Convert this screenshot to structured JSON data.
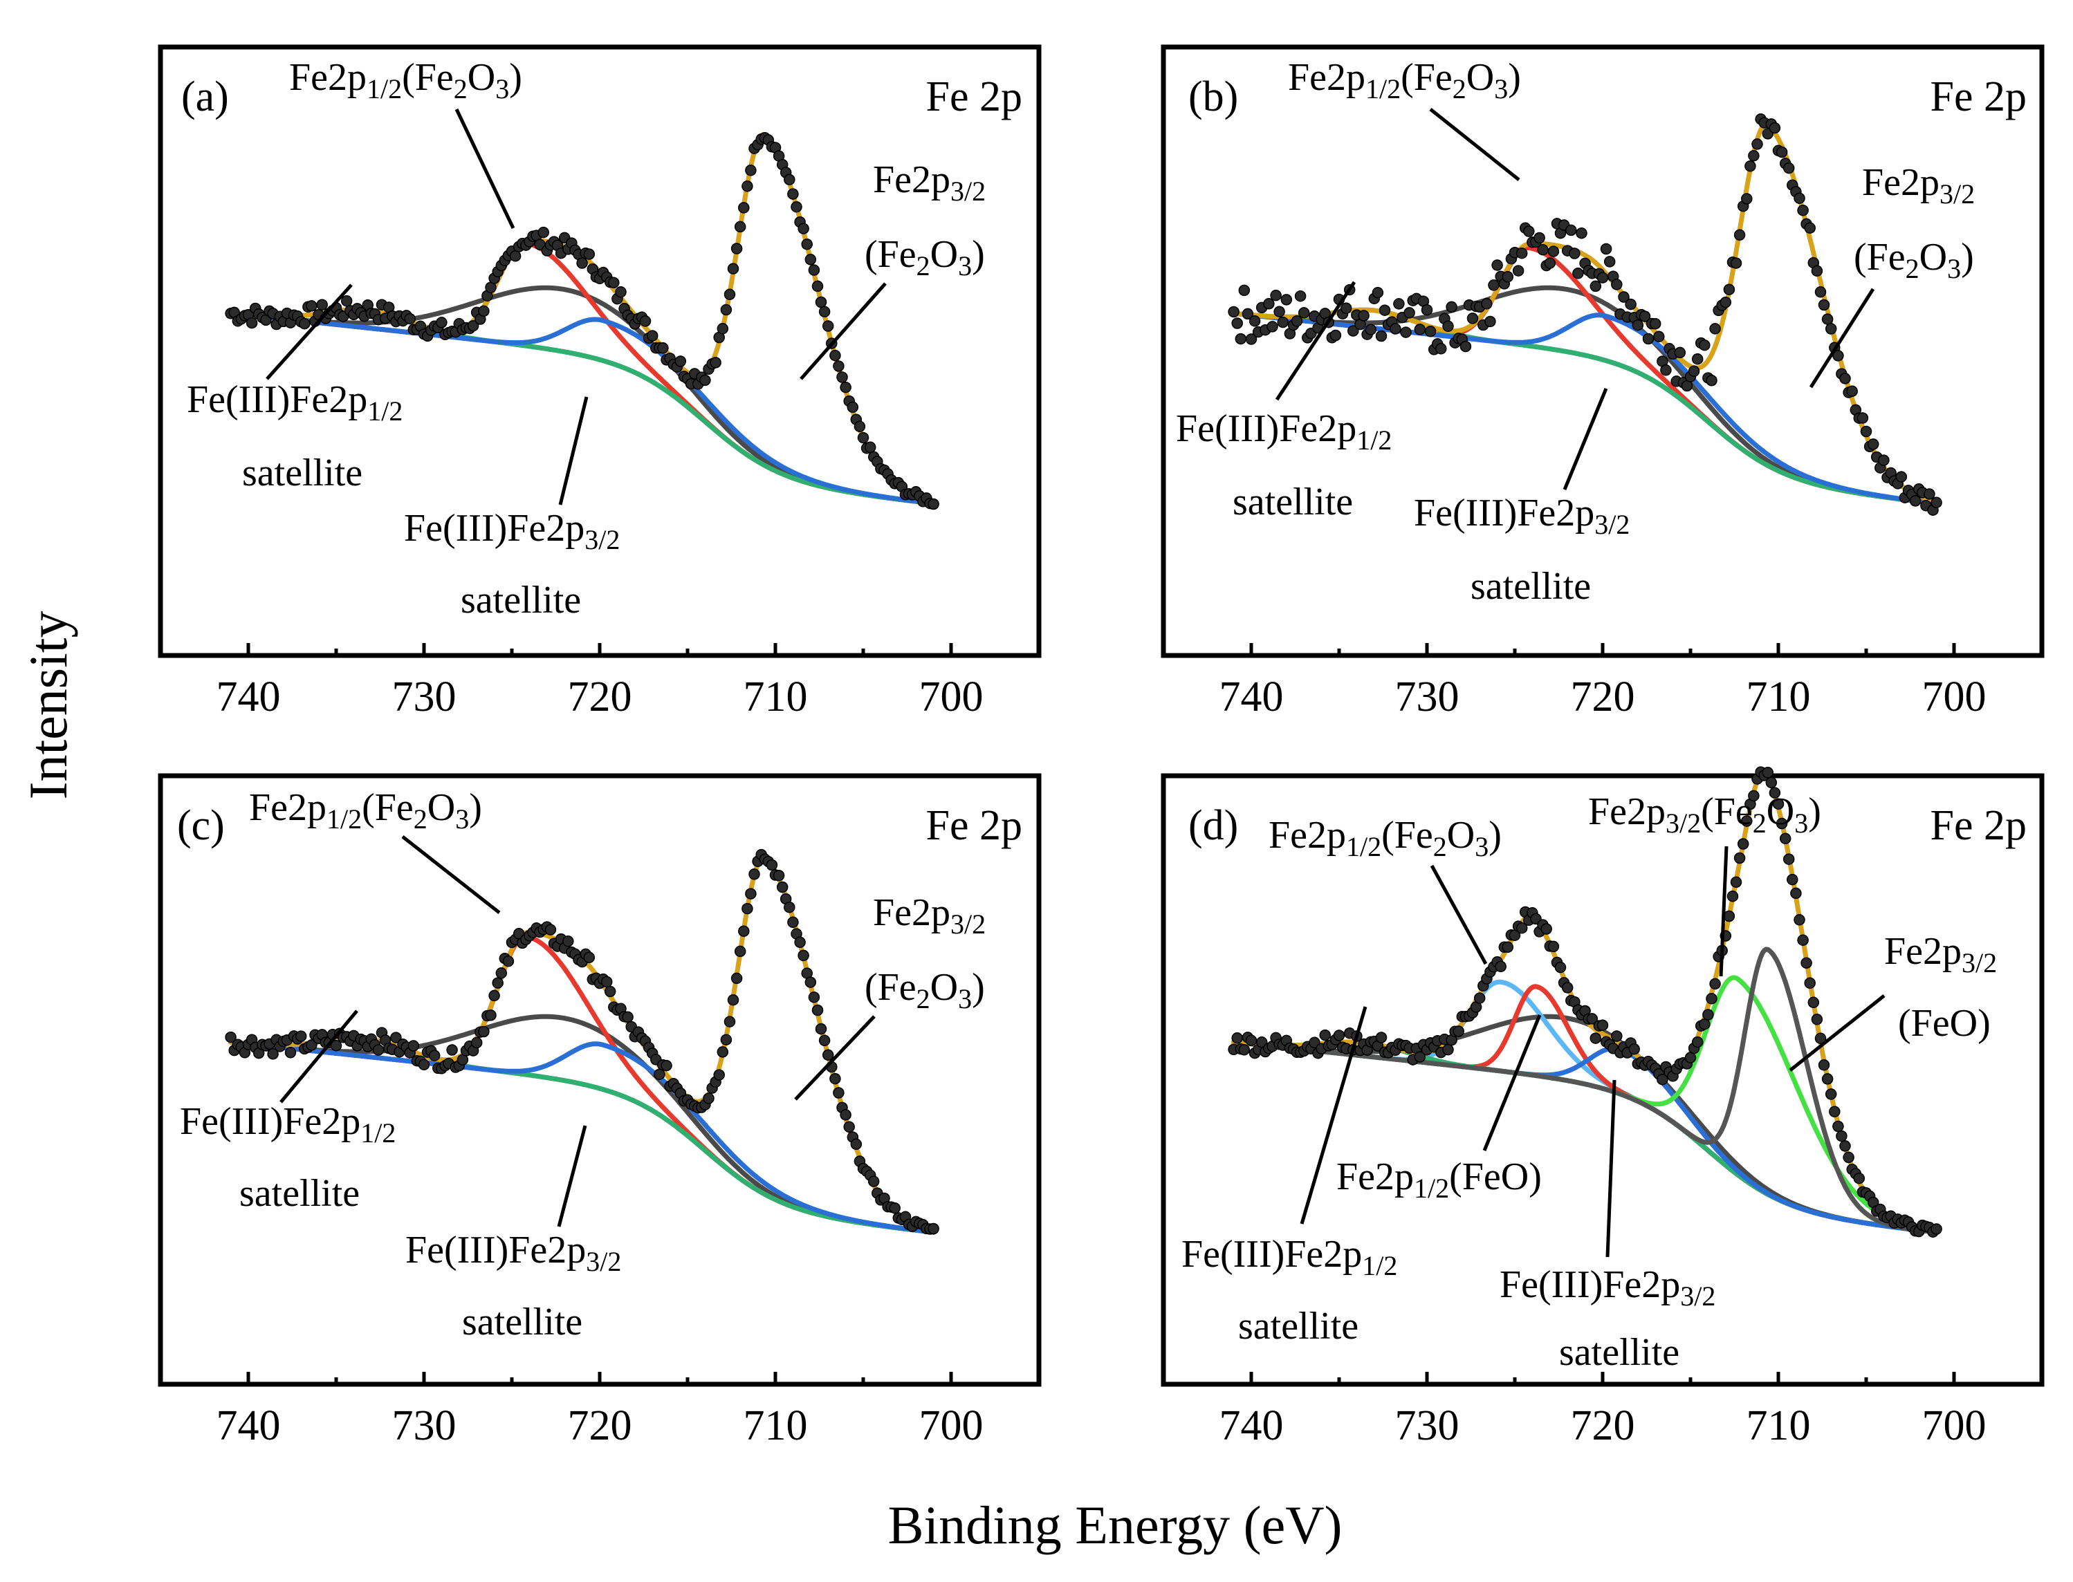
{
  "figure": {
    "xlabel": "Binding Energy (eV)",
    "ylabel": "Intensity"
  },
  "colors": {
    "data_points": "#2b2b2b",
    "envelope": "#D9A21B",
    "fe2o3_2p12": "#E8392E",
    "fe3_sat_2p12": "#30B070",
    "fe3_sat_2p32": "#2A6FD6",
    "background": "#4A4A4A",
    "baseline": "#B57EDC",
    "feo_2p12": "#5BB8F5",
    "fe2o3_2p32": "#44E044",
    "feo_2p32": "#555555"
  },
  "chart_data": [
    {
      "panel": "a",
      "type": "line",
      "title": "Fe 2p",
      "panel_label": "(a)",
      "xlabel": "Binding Energy (eV)",
      "ylabel": "Intensity",
      "xlim": [
        745,
        695
      ],
      "ylim": [
        0,
        100
      ],
      "xticks": [
        740,
        730,
        720,
        710,
        700
      ],
      "data_range": [
        741,
        701
      ],
      "grid": false,
      "components": [
        {
          "name": "Fe2p1/2(Fe2O3)",
          "color": "fe2o3_2p12",
          "center": 724.2,
          "height": 23,
          "width_lo": 1.6,
          "width_hi": 3.4
        },
        {
          "name": "Fe(III)Fe2p1/2 satellite",
          "color": "fe3_sat_2p12",
          "center": 733.2,
          "height": 4,
          "width_lo": 2.4,
          "width_hi": 2.4
        },
        {
          "name": "Fe(III)Fe2p3/2 satellite",
          "color": "fe3_sat_2p32",
          "center": 719.8,
          "height": 9,
          "width_lo": 2.0,
          "width_hi": 5.5
        },
        {
          "name": "Fe2p3/2(Fe2O3)",
          "color": "envelope",
          "center": 710.6,
          "height": 72,
          "width_lo": 1.5,
          "width_hi": 3.0
        }
      ],
      "annotations": {
        "fe2o3_2p12_main": "Fe2p",
        "fe2o3_2p12_sub": "1/2",
        "fe2o3_2p12_paren": "(Fe",
        "fe2o3_sub2": "2",
        "fe2o3_o": "O",
        "fe2o3_sub3": "3",
        "close_paren": ")",
        "fe2o3_2p32_main": "Fe2p",
        "fe2o3_2p32_sub": "3/2",
        "fe2o3_line": "(Fe",
        "sat12_main": "Fe(III)Fe2p",
        "sat12_sub": "1/2",
        "sat_word": "satellite",
        "sat32_main": "Fe(III)Fe2p",
        "sat32_sub": "3/2"
      }
    },
    {
      "panel": "b",
      "type": "line",
      "title": "Fe 2p",
      "panel_label": "(b)",
      "xlim": [
        745,
        695
      ],
      "ylim": [
        0,
        100
      ],
      "xticks": [
        740,
        730,
        720,
        710,
        700
      ],
      "data_range": [
        741,
        701
      ],
      "grid": false,
      "components": [
        {
          "name": "Fe2p1/2(Fe2O3)",
          "color": "fe2o3_2p12",
          "center": 724.2,
          "height": 22,
          "width_lo": 1.6,
          "width_hi": 3.4
        },
        {
          "name": "Fe(III)Fe2p1/2 satellite",
          "color": "fe3_sat_2p12",
          "center": 733.0,
          "height": 4,
          "width_lo": 2.4,
          "width_hi": 2.4
        },
        {
          "name": "Fe(III)Fe2p3/2 satellite",
          "color": "fe3_sat_2p32",
          "center": 719.8,
          "height": 10,
          "width_lo": 2.0,
          "width_hi": 5.5
        },
        {
          "name": "Fe2p3/2(Fe2O3)",
          "color": "envelope",
          "center": 710.6,
          "height": 74,
          "width_lo": 1.6,
          "width_hi": 3.0
        }
      ]
    },
    {
      "panel": "c",
      "type": "line",
      "title": "Fe 2p",
      "panel_label": "(c)",
      "xlim": [
        745,
        695
      ],
      "ylim": [
        0,
        100
      ],
      "xticks": [
        740,
        730,
        720,
        710,
        700
      ],
      "data_range": [
        741,
        701
      ],
      "grid": false,
      "components": [
        {
          "name": "Fe2p1/2(Fe2O3)",
          "color": "fe2o3_2p12",
          "center": 724.2,
          "height": 31,
          "width_lo": 1.6,
          "width_hi": 3.4
        },
        {
          "name": "Fe(III)Fe2p1/2 satellite",
          "color": "fe3_sat_2p12",
          "center": 733.3,
          "height": 4,
          "width_lo": 2.4,
          "width_hi": 2.4
        },
        {
          "name": "Fe(III)Fe2p3/2 satellite",
          "color": "fe3_sat_2p32",
          "center": 719.8,
          "height": 10,
          "width_lo": 2.0,
          "width_hi": 5.5
        },
        {
          "name": "Fe2p3/2(Fe2O3)",
          "color": "envelope",
          "center": 710.6,
          "height": 73,
          "width_lo": 1.5,
          "width_hi": 3.0
        }
      ]
    },
    {
      "panel": "d",
      "type": "line",
      "title": "Fe 2p",
      "panel_label": "(d)",
      "xlim": [
        745,
        695
      ],
      "ylim": [
        0,
        100
      ],
      "xticks": [
        740,
        730,
        720,
        710,
        700
      ],
      "data_range": [
        741,
        701
      ],
      "grid": false,
      "components": [
        {
          "name": "Fe2p1/2(Fe2O3)",
          "color": "feo_2p12",
          "center": 725.8,
          "height": 20,
          "width_lo": 1.8,
          "width_hi": 2.6
        },
        {
          "name": "Fe2p1/2(FeO)",
          "color": "fe2o3_2p12",
          "center": 723.8,
          "height": 20,
          "width_lo": 1.2,
          "width_hi": 1.8
        },
        {
          "name": "Fe(III)Fe2p1/2 satellite",
          "color": "fe3_sat_2p12",
          "center": 733.5,
          "height": 3,
          "width_lo": 2.4,
          "width_hi": 2.4
        },
        {
          "name": "Fe(III)Fe2p3/2 satellite",
          "color": "fe3_sat_2p32",
          "center": 719.0,
          "height": 10,
          "width_lo": 1.7,
          "width_hi": 3.0
        },
        {
          "name": "Fe2p3/2(Fe2O3)",
          "color": "fe2o3_2p32",
          "center": 712.3,
          "height": 44,
          "width_lo": 1.8,
          "width_hi": 3.4
        },
        {
          "name": "Fe2p3/2(FeO)",
          "color": "feo_2p32",
          "center": 710.6,
          "height": 55,
          "width_lo": 1.3,
          "width_hi": 2.2
        }
      ],
      "annotations": {
        "feo_main": "Fe2p",
        "feo_sub": "1/2",
        "feo_paren": "(FeO)",
        "feo32_sub": "3/2"
      }
    }
  ]
}
